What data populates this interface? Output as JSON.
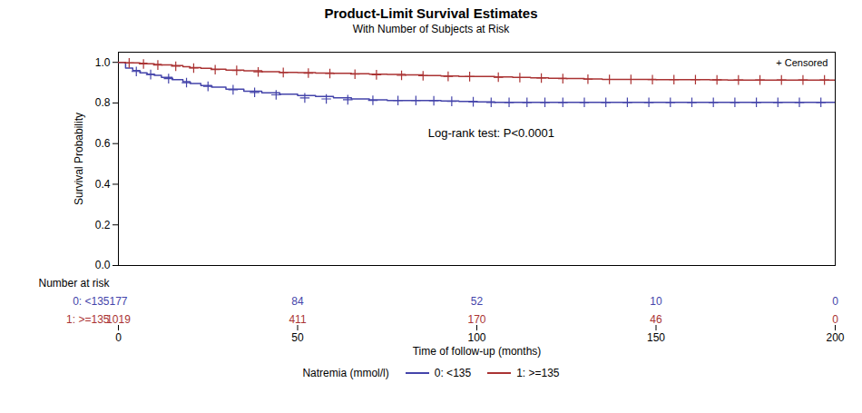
{
  "chart_data": {
    "type": "step",
    "title": "Product-Limit Survival Estimates",
    "subtitle": "With Number of Subjects at Risk",
    "xlabel": "Time of follow-up (months)",
    "ylabel": "Survival Probability",
    "xlim": [
      0,
      200
    ],
    "ylim": [
      0.0,
      1.05
    ],
    "xticks": [
      0,
      50,
      100,
      150,
      200
    ],
    "yticks": [
      {
        "value": 0.0,
        "label": "0.0"
      },
      0.2,
      0.4,
      0.6,
      0.8,
      {
        "value": 1.0,
        "label": "1.0"
      }
    ],
    "grid": false,
    "legend": "bottom",
    "legend_title": "Natremia (mmol/l)",
    "annotations": [
      "Log-rank test: P<0.0001"
    ],
    "censor_label": "+ Censored",
    "risk_label": "Number at risk",
    "risk_times": [
      0,
      50,
      100,
      150,
      200
    ],
    "series": [
      {
        "name": "0: <135",
        "color": "#4444aa",
        "x": [
          0,
          2,
          4,
          6,
          8,
          10,
          12,
          15,
          18,
          20,
          23,
          26,
          30,
          35,
          40,
          45,
          50,
          55,
          60,
          65,
          70,
          75,
          80,
          85,
          90,
          95,
          100,
          105,
          110,
          115,
          120,
          125,
          130,
          135,
          140,
          145,
          150,
          155,
          160,
          165,
          170,
          175,
          180,
          185,
          190,
          195,
          200
        ],
        "values": [
          1.0,
          0.972,
          0.96,
          0.948,
          0.942,
          0.936,
          0.926,
          0.915,
          0.905,
          0.896,
          0.886,
          0.878,
          0.868,
          0.858,
          0.85,
          0.843,
          0.837,
          0.832,
          0.826,
          0.82,
          0.815,
          0.812,
          0.812,
          0.812,
          0.81,
          0.808,
          0.805,
          0.803,
          0.803,
          0.803,
          0.803,
          0.803,
          0.803,
          0.803,
          0.803,
          0.803,
          0.803,
          0.803,
          0.803,
          0.803,
          0.803,
          0.803,
          0.803,
          0.803,
          0.803,
          0.803,
          0.803
        ],
        "censored_x": [
          5,
          9,
          14,
          19,
          25,
          32,
          38,
          44,
          52,
          58,
          64,
          71,
          78,
          83,
          88,
          93,
          99,
          104,
          109,
          114,
          119,
          124,
          130,
          136,
          142,
          148,
          154,
          160,
          166,
          172,
          178,
          184,
          190,
          196
        ],
        "censored_y": [
          0.955,
          0.94,
          0.92,
          0.9,
          0.882,
          0.865,
          0.852,
          0.84,
          0.825,
          0.82,
          0.816,
          0.813,
          0.812,
          0.812,
          0.811,
          0.808,
          0.806,
          0.803,
          0.803,
          0.803,
          0.803,
          0.803,
          0.803,
          0.803,
          0.803,
          0.803,
          0.803,
          0.803,
          0.803,
          0.803,
          0.803,
          0.803,
          0.803,
          0.803
        ],
        "at_risk": [
          177,
          84,
          52,
          10,
          0
        ]
      },
      {
        "name": "1: >=135",
        "color": "#aa3333",
        "x": [
          0,
          2,
          4,
          6,
          8,
          10,
          12,
          15,
          18,
          20,
          23,
          26,
          30,
          35,
          40,
          45,
          50,
          55,
          60,
          65,
          70,
          75,
          80,
          85,
          90,
          95,
          100,
          105,
          110,
          115,
          120,
          125,
          130,
          135,
          140,
          145,
          150,
          155,
          160,
          165,
          170,
          175,
          180,
          185,
          190,
          195,
          200
        ],
        "values": [
          1.0,
          0.998,
          0.997,
          0.995,
          0.993,
          0.99,
          0.988,
          0.984,
          0.978,
          0.974,
          0.971,
          0.966,
          0.962,
          0.958,
          0.954,
          0.951,
          0.949,
          0.947,
          0.946,
          0.944,
          0.942,
          0.94,
          0.938,
          0.935,
          0.933,
          0.931,
          0.93,
          0.928,
          0.926,
          0.924,
          0.922,
          0.92,
          0.918,
          0.916,
          0.916,
          0.916,
          0.915,
          0.915,
          0.915,
          0.914,
          0.913,
          0.913,
          0.913,
          0.913,
          0.913,
          0.913,
          0.913
        ],
        "censored_x": [
          3,
          7,
          11,
          16,
          21,
          27,
          33,
          39,
          46,
          53,
          59,
          66,
          72,
          79,
          85,
          92,
          98,
          106,
          112,
          118,
          124,
          131,
          137,
          143,
          149,
          155,
          161,
          167,
          173,
          179,
          185,
          191,
          197
        ],
        "censored_y": [
          0.997,
          0.992,
          0.987,
          0.981,
          0.972,
          0.964,
          0.96,
          0.953,
          0.95,
          0.947,
          0.945,
          0.942,
          0.939,
          0.936,
          0.934,
          0.931,
          0.93,
          0.927,
          0.925,
          0.923,
          0.92,
          0.917,
          0.916,
          0.916,
          0.915,
          0.915,
          0.915,
          0.914,
          0.913,
          0.913,
          0.913,
          0.913,
          0.913
        ],
        "at_risk": [
          1019,
          411,
          170,
          46,
          0
        ]
      }
    ]
  }
}
